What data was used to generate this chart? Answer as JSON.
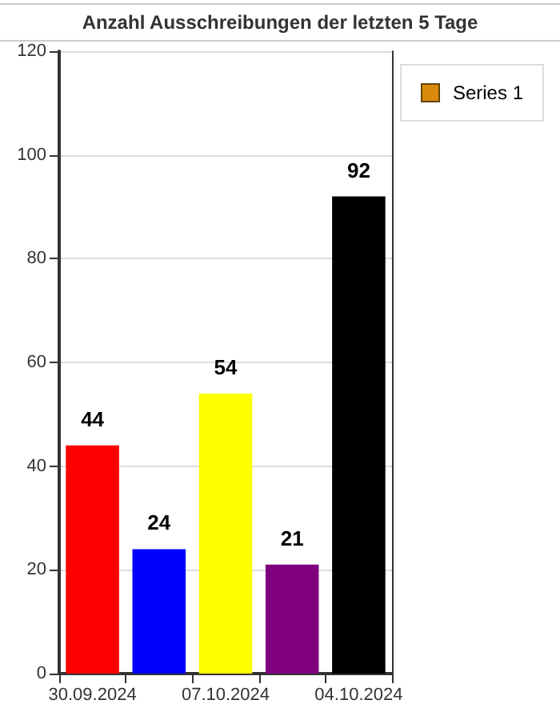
{
  "chart_data": {
    "type": "bar",
    "title": "Anzahl Ausschreibungen der letzten 5 Tage",
    "categories": [
      "30.09.2024",
      null,
      "07.10.2024",
      null,
      "04.10.2024"
    ],
    "series": [
      {
        "name": "Series 1",
        "color": "#d98a0c",
        "colors": [
          "#ff0000",
          "#0000ff",
          "#ffff00",
          "#800080",
          "#000000"
        ],
        "values": [
          44,
          24,
          54,
          21,
          92
        ]
      }
    ],
    "ylim": [
      0,
      120
    ],
    "yticks": [
      0,
      20,
      40,
      60,
      80,
      100,
      120
    ],
    "grid": "y",
    "legend": "top right",
    "data_labels": true
  }
}
